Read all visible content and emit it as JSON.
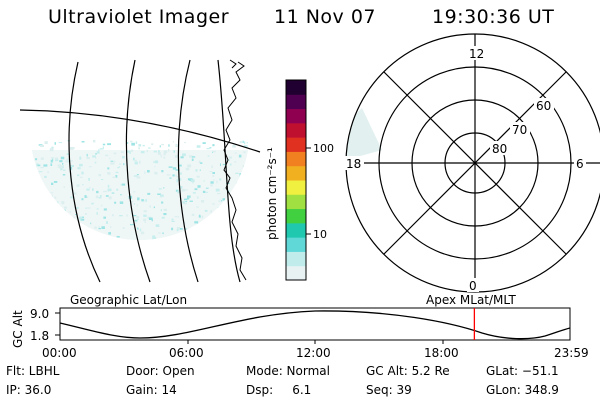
{
  "header": {
    "instrument": "Ultraviolet Imager",
    "date": "11 Nov 07",
    "time": "19:30:36 UT"
  },
  "left_panel": {
    "label": "Geographic Lat/Lon"
  },
  "colorbar": {
    "unit_label": "photon cm⁻²s⁻¹",
    "ticks": [
      "100",
      "10"
    ],
    "colors": [
      "#e8f2f2",
      "#c0ecec",
      "#60d8d8",
      "#20c8b0",
      "#40d040",
      "#a0e040",
      "#f0f040",
      "#f0b020",
      "#f08020",
      "#e03020",
      "#c01030",
      "#900050",
      "#500050",
      "#200030"
    ]
  },
  "polar_plot": {
    "label": "Apex MLat/MLT",
    "mlt_labels": {
      "top": "12",
      "left": "18",
      "right": "6",
      "bottom": "0"
    },
    "lat_labels": [
      "60",
      "70",
      "80"
    ]
  },
  "orbit": {
    "axis_label": "GC Alt",
    "y_ticks": [
      "9.0",
      "1.8"
    ],
    "x_ticks": [
      "00:00",
      "06:00",
      "12:00",
      "18:00",
      "23:59"
    ],
    "current_time_frac": 0.8125,
    "marker_color": "#ff0000"
  },
  "status": {
    "row1": {
      "flt": "Flt: LBHL",
      "door": "Door: Open",
      "mode": "Mode: Normal",
      "gc_alt": "GC Alt: 5.2 Re",
      "glat": "GLat: −51.1"
    },
    "row2": {
      "ip": "IP: 36.0",
      "gain": "Gain: 14",
      "dsp": "Dsp:     6.1",
      "seq": "Seq: 39",
      "glon": "GLon: 348.9"
    }
  }
}
